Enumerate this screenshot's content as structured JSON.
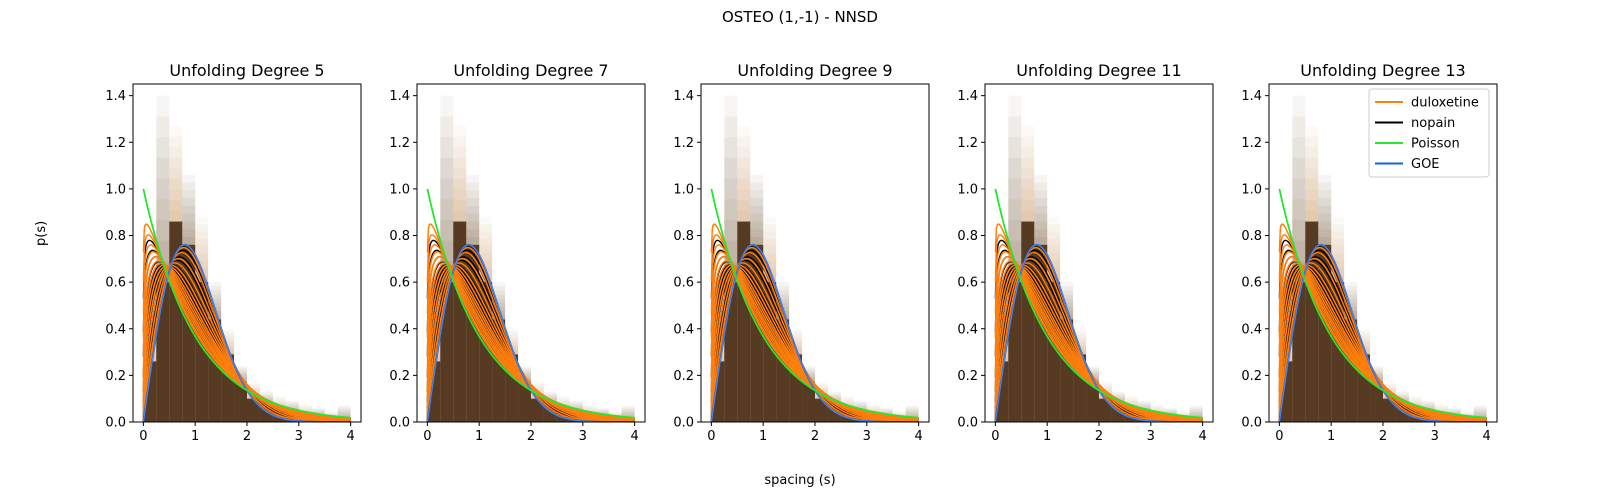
{
  "figure": {
    "suptitle": "OSTEO (1,-1) - NNSD",
    "ylabel": "p(s)",
    "xlabel": "spacing (s)"
  },
  "colors": {
    "duloxetine": "#ff7f0e",
    "nopain": "#000000",
    "Poisson": "#22e82e",
    "GOE": "#1560e0",
    "hist_dark": "#563a22",
    "hist_light": "#ffe6cc"
  },
  "legend": {
    "placement": "top-right of last panel",
    "entries": [
      "duloxetine",
      "nopain",
      "Poisson",
      "GOE"
    ]
  },
  "chart_data": [
    {
      "type": "line",
      "title": "Unfolding Degree 5",
      "xlim": [
        -0.2,
        4.2
      ],
      "ylim": [
        0.0,
        1.45
      ],
      "xticks": [
        "0",
        "1",
        "2",
        "3",
        "4"
      ],
      "yticks": [
        "0.0",
        "0.2",
        "0.4",
        "0.6",
        "0.8",
        "1.0",
        "1.2",
        "1.4"
      ],
      "histogram": {
        "bin_width": 0.25,
        "dark_heights": [
          0.26,
          0.6,
          0.86,
          0.76,
          0.6,
          0.44,
          0.29,
          0.17,
          0.1,
          0.07,
          0.05,
          0.035,
          0.025,
          0.018,
          0.012,
          0.008
        ],
        "light_heights": [
          0.5,
          1.4,
          1.27,
          1.06,
          0.88,
          0.6,
          0.4,
          0.24,
          0.17,
          0.13,
          0.11,
          0.09,
          0.075,
          0.06,
          0.045,
          0.07
        ]
      },
      "series": [
        {
          "name": "duloxetine",
          "model": "brody",
          "betas": [
            0.05,
            0.08,
            0.12,
            0.16,
            0.2,
            0.25,
            0.3,
            0.35,
            0.42,
            0.5,
            0.6,
            0.72,
            0.85,
            0.95
          ]
        },
        {
          "name": "nopain",
          "model": "brody",
          "betas": [
            0.1,
            0.15,
            0.2,
            0.26,
            0.32,
            0.38,
            0.45,
            0.52,
            0.6,
            0.68,
            0.76,
            0.84,
            0.9,
            0.96
          ]
        },
        {
          "name": "Poisson",
          "formula": "exp(-s)"
        },
        {
          "name": "GOE",
          "formula": "(pi/2) s exp(-pi s^2 / 4)"
        }
      ]
    },
    {
      "type": "line",
      "title": "Unfolding Degree 7",
      "xlim": [
        -0.2,
        4.2
      ],
      "ylim": [
        0.0,
        1.45
      ],
      "xticks": [
        "0",
        "1",
        "2",
        "3",
        "4"
      ],
      "yticks": [
        "0.0",
        "0.2",
        "0.4",
        "0.6",
        "0.8",
        "1.0",
        "1.2",
        "1.4"
      ],
      "histogram": {
        "bin_width": 0.25,
        "dark_heights": [
          0.26,
          0.6,
          0.86,
          0.76,
          0.6,
          0.44,
          0.29,
          0.17,
          0.1,
          0.07,
          0.05,
          0.035,
          0.025,
          0.018,
          0.012,
          0.008
        ],
        "light_heights": [
          0.5,
          1.4,
          1.27,
          1.06,
          0.88,
          0.6,
          0.4,
          0.24,
          0.17,
          0.13,
          0.11,
          0.09,
          0.075,
          0.06,
          0.045,
          0.07
        ]
      },
      "series": [
        {
          "name": "duloxetine",
          "model": "brody",
          "betas": [
            0.05,
            0.08,
            0.12,
            0.16,
            0.2,
            0.25,
            0.3,
            0.35,
            0.42,
            0.5,
            0.6,
            0.72,
            0.85,
            0.95
          ]
        },
        {
          "name": "nopain",
          "model": "brody",
          "betas": [
            0.1,
            0.15,
            0.2,
            0.26,
            0.32,
            0.38,
            0.45,
            0.52,
            0.6,
            0.68,
            0.76,
            0.84,
            0.9,
            0.96
          ]
        },
        {
          "name": "Poisson",
          "formula": "exp(-s)"
        },
        {
          "name": "GOE",
          "formula": "(pi/2) s exp(-pi s^2 / 4)"
        }
      ]
    },
    {
      "type": "line",
      "title": "Unfolding Degree 9",
      "xlim": [
        -0.2,
        4.2
      ],
      "ylim": [
        0.0,
        1.45
      ],
      "xticks": [
        "0",
        "1",
        "2",
        "3",
        "4"
      ],
      "yticks": [
        "0.0",
        "0.2",
        "0.4",
        "0.6",
        "0.8",
        "1.0",
        "1.2",
        "1.4"
      ],
      "histogram": {
        "bin_width": 0.25,
        "dark_heights": [
          0.26,
          0.6,
          0.86,
          0.76,
          0.6,
          0.44,
          0.29,
          0.17,
          0.1,
          0.07,
          0.05,
          0.035,
          0.025,
          0.018,
          0.012,
          0.008
        ],
        "light_heights": [
          0.5,
          1.4,
          1.27,
          1.06,
          0.88,
          0.6,
          0.4,
          0.24,
          0.17,
          0.13,
          0.11,
          0.09,
          0.075,
          0.06,
          0.045,
          0.07
        ]
      },
      "series": [
        {
          "name": "duloxetine",
          "model": "brody",
          "betas": [
            0.05,
            0.08,
            0.12,
            0.16,
            0.2,
            0.25,
            0.3,
            0.35,
            0.42,
            0.5,
            0.6,
            0.72,
            0.85,
            0.95
          ]
        },
        {
          "name": "nopain",
          "model": "brody",
          "betas": [
            0.1,
            0.15,
            0.2,
            0.26,
            0.32,
            0.38,
            0.45,
            0.52,
            0.6,
            0.68,
            0.76,
            0.84,
            0.9,
            0.96
          ]
        },
        {
          "name": "Poisson",
          "formula": "exp(-s)"
        },
        {
          "name": "GOE",
          "formula": "(pi/2) s exp(-pi s^2 / 4)"
        }
      ]
    },
    {
      "type": "line",
      "title": "Unfolding Degree 11",
      "xlim": [
        -0.2,
        4.2
      ],
      "ylim": [
        0.0,
        1.45
      ],
      "xticks": [
        "0",
        "1",
        "2",
        "3",
        "4"
      ],
      "yticks": [
        "0.0",
        "0.2",
        "0.4",
        "0.6",
        "0.8",
        "1.0",
        "1.2",
        "1.4"
      ],
      "histogram": {
        "bin_width": 0.25,
        "dark_heights": [
          0.26,
          0.6,
          0.86,
          0.76,
          0.6,
          0.44,
          0.29,
          0.17,
          0.1,
          0.07,
          0.05,
          0.035,
          0.025,
          0.018,
          0.012,
          0.008
        ],
        "light_heights": [
          0.5,
          1.4,
          1.27,
          1.06,
          0.88,
          0.6,
          0.4,
          0.24,
          0.17,
          0.13,
          0.11,
          0.09,
          0.075,
          0.06,
          0.045,
          0.07
        ]
      },
      "series": [
        {
          "name": "duloxetine",
          "model": "brody",
          "betas": [
            0.05,
            0.08,
            0.12,
            0.16,
            0.2,
            0.25,
            0.3,
            0.35,
            0.42,
            0.5,
            0.6,
            0.72,
            0.85,
            0.95
          ]
        },
        {
          "name": "nopain",
          "model": "brody",
          "betas": [
            0.1,
            0.15,
            0.2,
            0.26,
            0.32,
            0.38,
            0.45,
            0.52,
            0.6,
            0.68,
            0.76,
            0.84,
            0.9,
            0.96
          ]
        },
        {
          "name": "Poisson",
          "formula": "exp(-s)"
        },
        {
          "name": "GOE",
          "formula": "(pi/2) s exp(-pi s^2 / 4)"
        }
      ]
    },
    {
      "type": "line",
      "title": "Unfolding Degree 13",
      "xlim": [
        -0.2,
        4.2
      ],
      "ylim": [
        0.0,
        1.45
      ],
      "xticks": [
        "0",
        "1",
        "2",
        "3",
        "4"
      ],
      "yticks": [
        "0.0",
        "0.2",
        "0.4",
        "0.6",
        "0.8",
        "1.0",
        "1.2",
        "1.4"
      ],
      "histogram": {
        "bin_width": 0.25,
        "dark_heights": [
          0.26,
          0.6,
          0.86,
          0.76,
          0.6,
          0.44,
          0.29,
          0.17,
          0.1,
          0.07,
          0.05,
          0.035,
          0.025,
          0.018,
          0.012,
          0.008
        ],
        "light_heights": [
          0.5,
          1.4,
          1.27,
          1.06,
          0.88,
          0.6,
          0.4,
          0.24,
          0.17,
          0.13,
          0.11,
          0.09,
          0.075,
          0.06,
          0.045,
          0.07
        ]
      },
      "series": [
        {
          "name": "duloxetine",
          "model": "brody",
          "betas": [
            0.05,
            0.08,
            0.12,
            0.16,
            0.2,
            0.25,
            0.3,
            0.35,
            0.42,
            0.5,
            0.6,
            0.72,
            0.85,
            0.95
          ]
        },
        {
          "name": "nopain",
          "model": "brody",
          "betas": [
            0.1,
            0.15,
            0.2,
            0.26,
            0.32,
            0.38,
            0.45,
            0.52,
            0.6,
            0.68,
            0.76,
            0.84,
            0.9,
            0.96
          ]
        },
        {
          "name": "Poisson",
          "formula": "exp(-s)"
        },
        {
          "name": "GOE",
          "formula": "(pi/2) s exp(-pi s^2 / 4)"
        }
      ],
      "show_legend": true
    }
  ]
}
